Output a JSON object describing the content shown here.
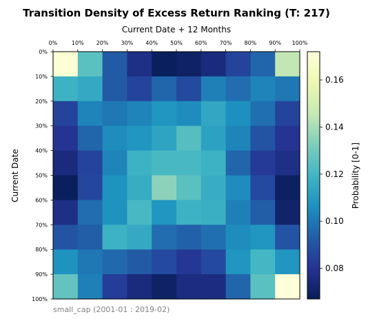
{
  "chart_data": {
    "type": "heatmap",
    "title": "Transition Density of Excess Return Ranking (T: 217)",
    "xlabel": "Current Date + 12 Months",
    "ylabel": "Current Date",
    "x_tick_labels": [
      "0%",
      "10%",
      "20%",
      "30%",
      "40%",
      "50%",
      "60%",
      "70%",
      "80%",
      "90%",
      "100%"
    ],
    "y_tick_labels": [
      "0%",
      "10%",
      "20%",
      "30%",
      "40%",
      "50%",
      "60%",
      "70%",
      "80%",
      "90%",
      "100%"
    ],
    "colorbar": {
      "label": "Probability [0-1]",
      "range": [
        0.067,
        0.172
      ],
      "ticks": [
        0.08,
        0.1,
        0.12,
        0.14,
        0.16
      ],
      "tick_labels": [
        "0.08",
        "0.10",
        "0.12",
        "0.14",
        "0.16"
      ],
      "colormap": "YlGnBu_r"
    },
    "values": [
      [
        0.17,
        0.125,
        0.092,
        0.077,
        0.068,
        0.07,
        0.075,
        0.085,
        0.095,
        0.145
      ],
      [
        0.118,
        0.115,
        0.092,
        0.085,
        0.095,
        0.087,
        0.102,
        0.097,
        0.103,
        0.1
      ],
      [
        0.085,
        0.103,
        0.1,
        0.103,
        0.108,
        0.105,
        0.114,
        0.106,
        0.098,
        0.085
      ],
      [
        0.08,
        0.095,
        0.105,
        0.108,
        0.113,
        0.124,
        0.112,
        0.103,
        0.09,
        0.08
      ],
      [
        0.075,
        0.085,
        0.103,
        0.118,
        0.121,
        0.121,
        0.118,
        0.095,
        0.082,
        0.077
      ],
      [
        0.068,
        0.086,
        0.107,
        0.116,
        0.135,
        0.125,
        0.116,
        0.105,
        0.087,
        0.069
      ],
      [
        0.077,
        0.097,
        0.107,
        0.121,
        0.108,
        0.118,
        0.117,
        0.102,
        0.093,
        0.071
      ],
      [
        0.09,
        0.093,
        0.118,
        0.115,
        0.097,
        0.094,
        0.098,
        0.105,
        0.108,
        0.09
      ],
      [
        0.107,
        0.1,
        0.096,
        0.092,
        0.087,
        0.081,
        0.087,
        0.108,
        0.12,
        0.108
      ],
      [
        0.127,
        0.102,
        0.083,
        0.075,
        0.07,
        0.076,
        0.076,
        0.095,
        0.125,
        0.172
      ]
    ]
  },
  "footer": "small_cap (2001-01 : 2019-02)"
}
